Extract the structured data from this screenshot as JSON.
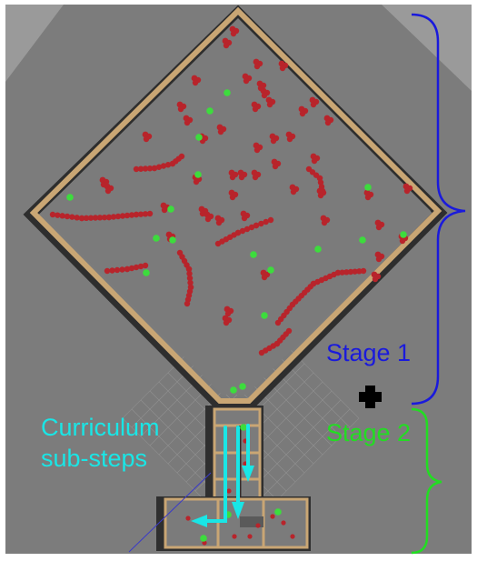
{
  "labels": {
    "stage1": "Stage 1",
    "stage2": "Stage 2",
    "curriculum_line1": "Curriculum",
    "curriculum_line2": "sub-steps"
  },
  "colors": {
    "stage1": "#1a1adc",
    "stage2": "#22dd22",
    "curriculum": "#19e6e6",
    "floor": "#7b7b7b",
    "wall_top": "#c9a674",
    "obstacle": "#b8242b",
    "goal": "#3ddc3d"
  },
  "icons": {
    "start_marker": "plus-icon"
  }
}
